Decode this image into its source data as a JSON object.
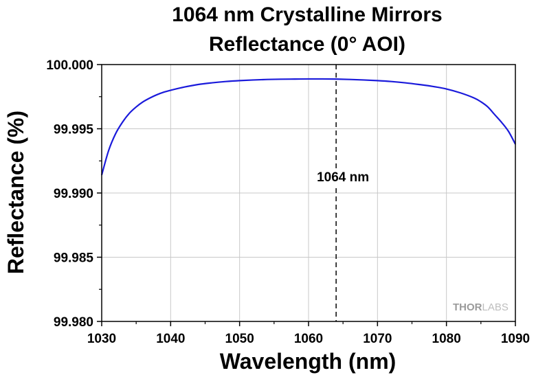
{
  "chart_data": {
    "type": "line",
    "title_line1": "1064 nm Crystalline Mirrors",
    "title_line2": "Reflectance (0° AOI)",
    "xlabel": "Wavelength (nm)",
    "ylabel": "Reflectance (%)",
    "xlim": [
      1030,
      1090
    ],
    "ylim": [
      99.98,
      100.0
    ],
    "x_ticks": [
      "1030",
      "1040",
      "1050",
      "1060",
      "1070",
      "1080",
      "1090"
    ],
    "y_ticks": [
      "99.980",
      "99.985",
      "99.990",
      "99.995",
      "100.000"
    ],
    "grid": true,
    "series": [
      {
        "color": "#1a1adb",
        "x": [
          1030,
          1031,
          1032,
          1033,
          1034,
          1035,
          1036,
          1037,
          1038,
          1039,
          1040,
          1042,
          1044,
          1046,
          1048,
          1050,
          1052,
          1054,
          1056,
          1058,
          1060,
          1062,
          1064,
          1066,
          1068,
          1070,
          1072,
          1074,
          1076,
          1078,
          1080,
          1082,
          1084,
          1085,
          1086,
          1087,
          1088,
          1089,
          1090
        ],
        "y": [
          99.9914,
          99.9933,
          99.9946,
          99.9955,
          99.9962,
          99.9967,
          99.9971,
          99.9974,
          99.99765,
          99.99785,
          99.998,
          99.99825,
          99.99845,
          99.99858,
          99.99868,
          99.99875,
          99.9988,
          99.99884,
          99.99886,
          99.99887,
          99.99888,
          99.99888,
          99.99887,
          99.99884,
          99.9988,
          99.99875,
          99.99868,
          99.99858,
          99.99845,
          99.9983,
          99.9981,
          99.9978,
          99.9974,
          99.9971,
          99.9967,
          99.9961,
          99.9955,
          99.9948,
          99.9938
        ]
      }
    ],
    "annotation": {
      "x": 1064,
      "label": "1064 nm",
      "label_y": 99.9909,
      "line_style": "dashed"
    },
    "watermark": {
      "bold": "THOR",
      "light": "LABS"
    }
  }
}
